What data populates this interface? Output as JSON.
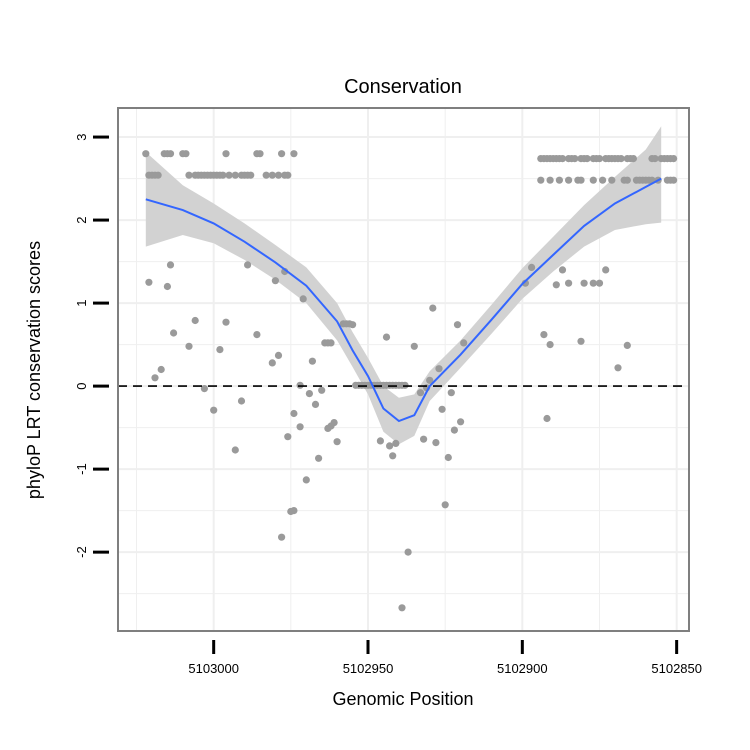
{
  "chart_data": {
    "type": "scatter",
    "title": "Conservation",
    "xlabel": "Genomic Position",
    "ylabel": "phyloP LRT conservation scores",
    "x_reversed": true,
    "xlim": [
      5103031,
      5102846
    ],
    "ylim": [
      -2.95,
      3.35
    ],
    "x_ticks": [
      5103000,
      5102950,
      5102900,
      5102850
    ],
    "x_tick_labels": [
      "5103000",
      "5102950",
      "5102900",
      "5102850"
    ],
    "y_ticks": [
      3,
      2,
      1,
      0,
      -1,
      -2
    ],
    "y_tick_labels": [
      "3",
      "2",
      "1",
      "0",
      "-1",
      "-2"
    ],
    "grid": true,
    "reference_line": {
      "y": 0,
      "style": "dashed"
    },
    "colors": {
      "points": "#9a9a9a",
      "smooth_line": "#3366ff",
      "ribbon": "#d2d2d2",
      "panel_border": "#7f7f7f",
      "grid": "#efefef"
    },
    "smooth": {
      "x": [
        5103022,
        5103010,
        5103000,
        5102990,
        5102980,
        5102970,
        5102960,
        5102955,
        5102950,
        5102945,
        5102940,
        5102935,
        5102930,
        5102920,
        5102910,
        5102900,
        5102890,
        5102880,
        5102870,
        5102860,
        5102855
      ],
      "y": [
        2.25,
        2.12,
        1.96,
        1.74,
        1.49,
        1.21,
        0.78,
        0.43,
        0.12,
        -0.27,
        -0.42,
        -0.35,
        0.0,
        0.38,
        0.8,
        1.23,
        1.58,
        1.93,
        2.2,
        2.4,
        2.5
      ],
      "lower": [
        1.68,
        1.82,
        1.72,
        1.52,
        1.28,
        1.0,
        0.55,
        0.23,
        -0.1,
        -0.55,
        -0.7,
        -0.6,
        -0.18,
        0.22,
        0.63,
        1.05,
        1.38,
        1.68,
        1.88,
        1.95,
        1.97
      ],
      "upper": [
        2.82,
        2.42,
        2.2,
        1.96,
        1.7,
        1.43,
        1.0,
        0.65,
        0.34,
        0.0,
        -0.14,
        -0.1,
        0.18,
        0.55,
        0.98,
        1.42,
        1.8,
        2.18,
        2.52,
        2.85,
        3.13
      ]
    },
    "points": [
      {
        "x": 5103022,
        "y": 2.8
      },
      {
        "x": 5103016,
        "y": 2.8
      },
      {
        "x": 5103015,
        "y": 2.8
      },
      {
        "x": 5103014,
        "y": 2.8
      },
      {
        "x": 5103010,
        "y": 2.8
      },
      {
        "x": 5103009,
        "y": 2.8
      },
      {
        "x": 5102996,
        "y": 2.8
      },
      {
        "x": 5102986,
        "y": 2.8
      },
      {
        "x": 5102985,
        "y": 2.8
      },
      {
        "x": 5102978,
        "y": 2.8
      },
      {
        "x": 5102974,
        "y": 2.8
      },
      {
        "x": 5103021,
        "y": 2.54
      },
      {
        "x": 5103020,
        "y": 2.54
      },
      {
        "x": 5103019,
        "y": 2.54
      },
      {
        "x": 5103018,
        "y": 2.54
      },
      {
        "x": 5103008,
        "y": 2.54
      },
      {
        "x": 5103006,
        "y": 2.54
      },
      {
        "x": 5103005,
        "y": 2.54
      },
      {
        "x": 5103004,
        "y": 2.54
      },
      {
        "x": 5103003,
        "y": 2.54
      },
      {
        "x": 5103002,
        "y": 2.54
      },
      {
        "x": 5103001,
        "y": 2.54
      },
      {
        "x": 5103000,
        "y": 2.54
      },
      {
        "x": 5102999,
        "y": 2.54
      },
      {
        "x": 5102998,
        "y": 2.54
      },
      {
        "x": 5102997,
        "y": 2.54
      },
      {
        "x": 5102995,
        "y": 2.54
      },
      {
        "x": 5102993,
        "y": 2.54
      },
      {
        "x": 5102991,
        "y": 2.54
      },
      {
        "x": 5102990,
        "y": 2.54
      },
      {
        "x": 5102989,
        "y": 2.54
      },
      {
        "x": 5102988,
        "y": 2.54
      },
      {
        "x": 5102983,
        "y": 2.54
      },
      {
        "x": 5102981,
        "y": 2.54
      },
      {
        "x": 5102979,
        "y": 2.54
      },
      {
        "x": 5102977,
        "y": 2.54
      },
      {
        "x": 5102976,
        "y": 2.54
      },
      {
        "x": 5102894,
        "y": 2.74
      },
      {
        "x": 5102893,
        "y": 2.74
      },
      {
        "x": 5102892,
        "y": 2.74
      },
      {
        "x": 5102891,
        "y": 2.74
      },
      {
        "x": 5102890,
        "y": 2.74
      },
      {
        "x": 5102889,
        "y": 2.74
      },
      {
        "x": 5102888,
        "y": 2.74
      },
      {
        "x": 5102887,
        "y": 2.74
      },
      {
        "x": 5102885,
        "y": 2.74
      },
      {
        "x": 5102884,
        "y": 2.74
      },
      {
        "x": 5102883,
        "y": 2.74
      },
      {
        "x": 5102881,
        "y": 2.74
      },
      {
        "x": 5102880,
        "y": 2.74
      },
      {
        "x": 5102879,
        "y": 2.74
      },
      {
        "x": 5102877,
        "y": 2.74
      },
      {
        "x": 5102876,
        "y": 2.74
      },
      {
        "x": 5102875,
        "y": 2.74
      },
      {
        "x": 5102873,
        "y": 2.74
      },
      {
        "x": 5102872,
        "y": 2.74
      },
      {
        "x": 5102871,
        "y": 2.74
      },
      {
        "x": 5102870,
        "y": 2.74
      },
      {
        "x": 5102869,
        "y": 2.74
      },
      {
        "x": 5102868,
        "y": 2.74
      },
      {
        "x": 5102866,
        "y": 2.74
      },
      {
        "x": 5102865,
        "y": 2.74
      },
      {
        "x": 5102864,
        "y": 2.74
      },
      {
        "x": 5102858,
        "y": 2.74
      },
      {
        "x": 5102857,
        "y": 2.74
      },
      {
        "x": 5102855,
        "y": 2.74
      },
      {
        "x": 5102854,
        "y": 2.74
      },
      {
        "x": 5102853,
        "y": 2.74
      },
      {
        "x": 5102852,
        "y": 2.74
      },
      {
        "x": 5102851,
        "y": 2.74
      },
      {
        "x": 5102894,
        "y": 2.48
      },
      {
        "x": 5102891,
        "y": 2.48
      },
      {
        "x": 5102888,
        "y": 2.48
      },
      {
        "x": 5102885,
        "y": 2.48
      },
      {
        "x": 5102882,
        "y": 2.48
      },
      {
        "x": 5102881,
        "y": 2.48
      },
      {
        "x": 5102877,
        "y": 2.48
      },
      {
        "x": 5102874,
        "y": 2.48
      },
      {
        "x": 5102871,
        "y": 2.48
      },
      {
        "x": 5102867,
        "y": 2.48
      },
      {
        "x": 5102866,
        "y": 2.48
      },
      {
        "x": 5102863,
        "y": 2.48
      },
      {
        "x": 5102862,
        "y": 2.48
      },
      {
        "x": 5102861,
        "y": 2.48
      },
      {
        "x": 5102860,
        "y": 2.48
      },
      {
        "x": 5102859,
        "y": 2.48
      },
      {
        "x": 5102858,
        "y": 2.48
      },
      {
        "x": 5102856,
        "y": 2.48
      },
      {
        "x": 5102853,
        "y": 2.48
      },
      {
        "x": 5102852,
        "y": 2.48
      },
      {
        "x": 5102851,
        "y": 2.48
      },
      {
        "x": 5103021,
        "y": 1.25
      },
      {
        "x": 5103019,
        "y": 0.1
      },
      {
        "x": 5103017,
        "y": 0.2
      },
      {
        "x": 5103015,
        "y": 1.2
      },
      {
        "x": 5103014,
        "y": 1.46
      },
      {
        "x": 5103013,
        "y": 0.64
      },
      {
        "x": 5103008,
        "y": 0.48
      },
      {
        "x": 5103006,
        "y": 0.79
      },
      {
        "x": 5103003,
        "y": -0.03
      },
      {
        "x": 5103000,
        "y": -0.29
      },
      {
        "x": 5102998,
        "y": 0.44
      },
      {
        "x": 5102996,
        "y": 0.77
      },
      {
        "x": 5102993,
        "y": -0.77
      },
      {
        "x": 5102991,
        "y": -0.18
      },
      {
        "x": 5102989,
        "y": 1.46
      },
      {
        "x": 5102986,
        "y": 0.62
      },
      {
        "x": 5102981,
        "y": 0.28
      },
      {
        "x": 5102980,
        "y": 1.27
      },
      {
        "x": 5102979,
        "y": 0.37
      },
      {
        "x": 5102978,
        "y": -1.82
      },
      {
        "x": 5102977,
        "y": 1.38
      },
      {
        "x": 5102976,
        "y": -0.61
      },
      {
        "x": 5102975,
        "y": -1.51
      },
      {
        "x": 5102974,
        "y": -1.5
      },
      {
        "x": 5102974,
        "y": -0.33
      },
      {
        "x": 5102972,
        "y": -0.49
      },
      {
        "x": 5102972,
        "y": 0.01
      },
      {
        "x": 5102971,
        "y": 1.05
      },
      {
        "x": 5102970,
        "y": -1.13
      },
      {
        "x": 5102969,
        "y": -0.09
      },
      {
        "x": 5102968,
        "y": 0.3
      },
      {
        "x": 5102967,
        "y": -0.22
      },
      {
        "x": 5102966,
        "y": -0.87
      },
      {
        "x": 5102965,
        "y": -0.05
      },
      {
        "x": 5102964,
        "y": 0.52
      },
      {
        "x": 5102963,
        "y": -0.51
      },
      {
        "x": 5102963,
        "y": 0.52
      },
      {
        "x": 5102962,
        "y": 0.52
      },
      {
        "x": 5102962,
        "y": -0.48
      },
      {
        "x": 5102961,
        "y": -0.44
      },
      {
        "x": 5102960,
        "y": -0.67
      },
      {
        "x": 5102958,
        "y": 0.75
      },
      {
        "x": 5102957,
        "y": 0.75
      },
      {
        "x": 5102956,
        "y": 0.75
      },
      {
        "x": 5102955,
        "y": 0.74
      },
      {
        "x": 5102954,
        "y": 0.01
      },
      {
        "x": 5102953,
        "y": 0.01
      },
      {
        "x": 5102952,
        "y": 0.01
      },
      {
        "x": 5102951,
        "y": 0.01
      },
      {
        "x": 5102950,
        "y": 0.01
      },
      {
        "x": 5102949,
        "y": 0.01
      },
      {
        "x": 5102948,
        "y": 0.01
      },
      {
        "x": 5102947,
        "y": 0.01
      },
      {
        "x": 5102946,
        "y": 0.01
      },
      {
        "x": 5102945,
        "y": 0.01
      },
      {
        "x": 5102944,
        "y": 0.01
      },
      {
        "x": 5102943,
        "y": 0.01
      },
      {
        "x": 5102942,
        "y": 0.01
      },
      {
        "x": 5102941,
        "y": 0.01
      },
      {
        "x": 5102940,
        "y": 0.01
      },
      {
        "x": 5102939,
        "y": 0.01
      },
      {
        "x": 5102938,
        "y": 0.01
      },
      {
        "x": 5102946,
        "y": -0.66
      },
      {
        "x": 5102944,
        "y": 0.59
      },
      {
        "x": 5102943,
        "y": -0.72
      },
      {
        "x": 5102942,
        "y": -0.84
      },
      {
        "x": 5102941,
        "y": -0.69
      },
      {
        "x": 5102939,
        "y": -2.67
      },
      {
        "x": 5102937,
        "y": -2.0
      },
      {
        "x": 5102935,
        "y": 0.48
      },
      {
        "x": 5102933,
        "y": -0.08
      },
      {
        "x": 5102932,
        "y": -0.64
      },
      {
        "x": 5102931,
        "y": -0.02
      },
      {
        "x": 5102930,
        "y": 0.07
      },
      {
        "x": 5102929,
        "y": 0.94
      },
      {
        "x": 5102928,
        "y": -0.68
      },
      {
        "x": 5102927,
        "y": 0.21
      },
      {
        "x": 5102926,
        "y": -0.28
      },
      {
        "x": 5102925,
        "y": -1.43
      },
      {
        "x": 5102924,
        "y": -0.86
      },
      {
        "x": 5102923,
        "y": -0.08
      },
      {
        "x": 5102922,
        "y": -0.53
      },
      {
        "x": 5102921,
        "y": 0.74
      },
      {
        "x": 5102920,
        "y": -0.43
      },
      {
        "x": 5102919,
        "y": 0.52
      },
      {
        "x": 5102899,
        "y": 1.24
      },
      {
        "x": 5102897,
        "y": 1.43
      },
      {
        "x": 5102893,
        "y": 0.62
      },
      {
        "x": 5102892,
        "y": -0.39
      },
      {
        "x": 5102891,
        "y": 0.5
      },
      {
        "x": 5102889,
        "y": 1.22
      },
      {
        "x": 5102887,
        "y": 1.4
      },
      {
        "x": 5102885,
        "y": 1.24
      },
      {
        "x": 5102881,
        "y": 0.54
      },
      {
        "x": 5102880,
        "y": 1.24
      },
      {
        "x": 5102877,
        "y": 1.24
      },
      {
        "x": 5102875,
        "y": 1.24
      },
      {
        "x": 5102873,
        "y": 1.4
      },
      {
        "x": 5102869,
        "y": 0.22
      },
      {
        "x": 5102866,
        "y": 0.49
      }
    ]
  }
}
